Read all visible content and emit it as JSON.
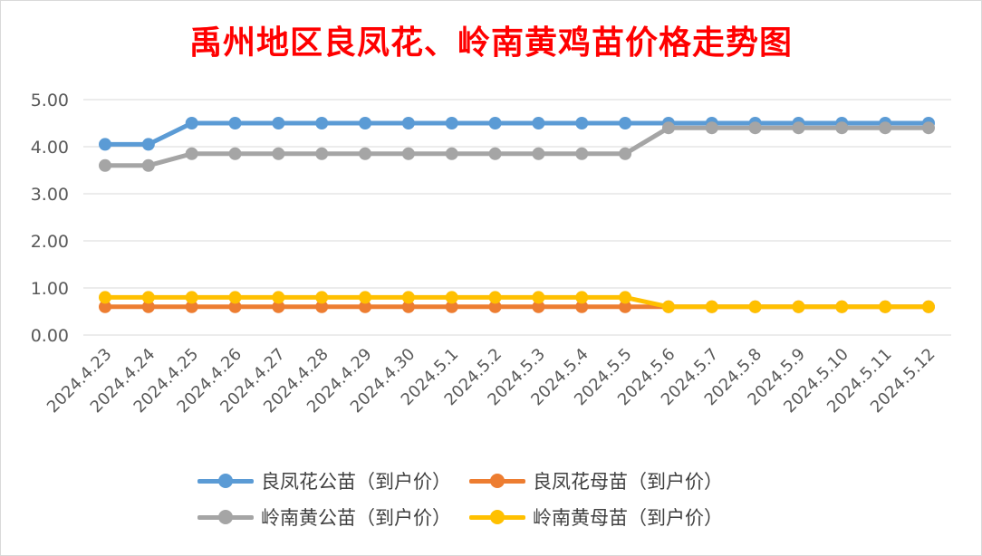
{
  "chart_data": {
    "type": "line",
    "title": "禹州地区良凤花、岭南黄鸡苗价格走势图",
    "xlabel": "",
    "ylabel": "",
    "ylim": [
      0,
      5
    ],
    "yticks": [
      "0.00",
      "1.00",
      "2.00",
      "3.00",
      "4.00",
      "5.00"
    ],
    "grid": true,
    "legend_position": "bottom",
    "categories": [
      "2024.4.23",
      "2024.4.24",
      "2024.4.25",
      "2024.4.26",
      "2024.4.27",
      "2024.4.28",
      "2024.4.29",
      "2024.4.30",
      "2024.5.1",
      "2024.5.2",
      "2024.5.3",
      "2024.5.4",
      "2024.5.5",
      "2024.5.6",
      "2024.5.7",
      "2024.5.8",
      "2024.5.9",
      "2024.5.10",
      "2024.5.11",
      "2024.5.12"
    ],
    "series": [
      {
        "name": "良凤花公苗（到户价）",
        "color": "#5b9bd5",
        "values": [
          4.05,
          4.05,
          4.5,
          4.5,
          4.5,
          4.5,
          4.5,
          4.5,
          4.5,
          4.5,
          4.5,
          4.5,
          4.5,
          4.5,
          4.5,
          4.5,
          4.5,
          4.5,
          4.5,
          4.5
        ]
      },
      {
        "name": "良凤花母苗（到户价）",
        "color": "#ed7d31",
        "values": [
          0.6,
          0.6,
          0.6,
          0.6,
          0.6,
          0.6,
          0.6,
          0.6,
          0.6,
          0.6,
          0.6,
          0.6,
          0.6,
          0.6,
          0.6,
          0.6,
          0.6,
          0.6,
          0.6,
          0.6
        ]
      },
      {
        "name": "岭南黄公苗（到户价）",
        "color": "#a5a5a5",
        "values": [
          3.6,
          3.6,
          3.85,
          3.85,
          3.85,
          3.85,
          3.85,
          3.85,
          3.85,
          3.85,
          3.85,
          3.85,
          3.85,
          4.4,
          4.4,
          4.4,
          4.4,
          4.4,
          4.4,
          4.4
        ]
      },
      {
        "name": "岭南黄母苗（到户价）",
        "color": "#ffc000",
        "values": [
          0.8,
          0.8,
          0.8,
          0.8,
          0.8,
          0.8,
          0.8,
          0.8,
          0.8,
          0.8,
          0.8,
          0.8,
          0.8,
          0.6,
          0.6,
          0.6,
          0.6,
          0.6,
          0.6,
          0.6
        ]
      }
    ]
  }
}
